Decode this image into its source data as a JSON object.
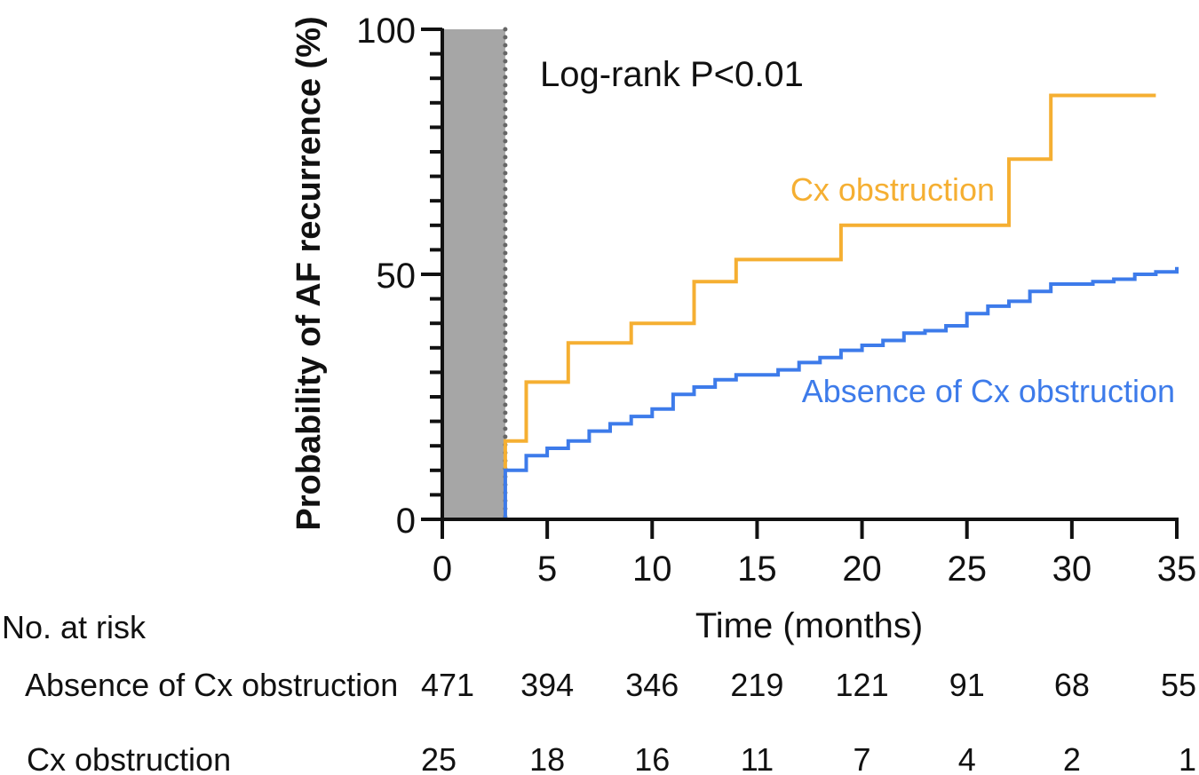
{
  "colors": {
    "group_cx": "#F5AF32",
    "group_no_cx": "#3D7BEA",
    "shade": "#A6A6A6",
    "axis": "#111111"
  },
  "chart_data": {
    "type": "line",
    "subtype": "kaplan-meier-step",
    "title": "",
    "xlabel": "Time (months)",
    "ylabel": "Probability of AF recurrence (%)",
    "xlim": [
      0,
      35
    ],
    "ylim": [
      0,
      100
    ],
    "x_ticks": [
      0,
      5,
      10,
      15,
      20,
      25,
      30,
      35
    ],
    "y_ticks": [
      0,
      50,
      100
    ],
    "y_minor_step": 5,
    "blanking_period": {
      "start": 0,
      "end": 3
    },
    "annotation": "Log-rank P<0.01",
    "series": [
      {
        "name": "Cx obstruction",
        "color_key": "group_cx",
        "points": [
          [
            0,
            0
          ],
          [
            3,
            0
          ],
          [
            3,
            16
          ],
          [
            4,
            16
          ],
          [
            4,
            28
          ],
          [
            6,
            28
          ],
          [
            6,
            36
          ],
          [
            9,
            36
          ],
          [
            9,
            40
          ],
          [
            12,
            40
          ],
          [
            12,
            48.5
          ],
          [
            14,
            48.5
          ],
          [
            14,
            53
          ],
          [
            19,
            53
          ],
          [
            19,
            60
          ],
          [
            27,
            60
          ],
          [
            27,
            73.5
          ],
          [
            29,
            73.5
          ],
          [
            29,
            86.5
          ],
          [
            34,
            86.5
          ]
        ]
      },
      {
        "name": "Absence of Cx obstruction",
        "color_key": "group_no_cx",
        "points": [
          [
            0,
            0
          ],
          [
            3,
            0
          ],
          [
            3,
            10
          ],
          [
            4,
            10
          ],
          [
            4,
            13
          ],
          [
            5,
            13
          ],
          [
            5,
            14.5
          ],
          [
            6,
            14.5
          ],
          [
            6,
            16
          ],
          [
            7,
            16
          ],
          [
            7,
            18
          ],
          [
            8,
            18
          ],
          [
            8,
            19.5
          ],
          [
            9,
            19.5
          ],
          [
            9,
            21
          ],
          [
            10,
            21
          ],
          [
            10,
            22.5
          ],
          [
            11,
            22.5
          ],
          [
            11,
            25.5
          ],
          [
            12,
            25.5
          ],
          [
            12,
            27
          ],
          [
            13,
            27
          ],
          [
            13,
            28.5
          ],
          [
            14,
            28.5
          ],
          [
            14,
            29.5
          ],
          [
            16,
            29.5
          ],
          [
            16,
            30.5
          ],
          [
            17,
            30.5
          ],
          [
            17,
            32
          ],
          [
            18,
            32
          ],
          [
            18,
            33
          ],
          [
            19,
            33
          ],
          [
            19,
            34.5
          ],
          [
            20,
            34.5
          ],
          [
            20,
            35.5
          ],
          [
            21,
            35.5
          ],
          [
            21,
            36.5
          ],
          [
            22,
            36.5
          ],
          [
            22,
            38
          ],
          [
            23,
            38
          ],
          [
            23,
            38.5
          ],
          [
            24,
            38.5
          ],
          [
            24,
            39.5
          ],
          [
            25,
            39.5
          ],
          [
            25,
            42
          ],
          [
            26,
            42
          ],
          [
            26,
            43.5
          ],
          [
            27,
            43.5
          ],
          [
            27,
            44.5
          ],
          [
            28,
            44.5
          ],
          [
            28,
            46.5
          ],
          [
            29,
            46.5
          ],
          [
            29,
            48
          ],
          [
            31,
            48
          ],
          [
            31,
            48.5
          ],
          [
            32,
            48.5
          ],
          [
            32,
            49
          ],
          [
            33,
            49
          ],
          [
            33,
            50
          ],
          [
            34,
            50
          ],
          [
            34,
            50.5
          ],
          [
            35,
            50.5
          ],
          [
            35,
            51.5
          ]
        ]
      }
    ],
    "series_labels": [
      "Cx obstruction",
      "Absence of Cx obstruction"
    ],
    "risk_table": {
      "header": "No. at risk",
      "rows": [
        {
          "label": "Absence of Cx obstruction",
          "values": [
            "471",
            "394",
            "346",
            "219",
            "121",
            "91",
            "68",
            "55"
          ]
        },
        {
          "label": "Cx obstruction",
          "values": [
            "25",
            "18",
            "16",
            "11",
            "7",
            "4",
            "2",
            "1"
          ]
        }
      ]
    }
  }
}
